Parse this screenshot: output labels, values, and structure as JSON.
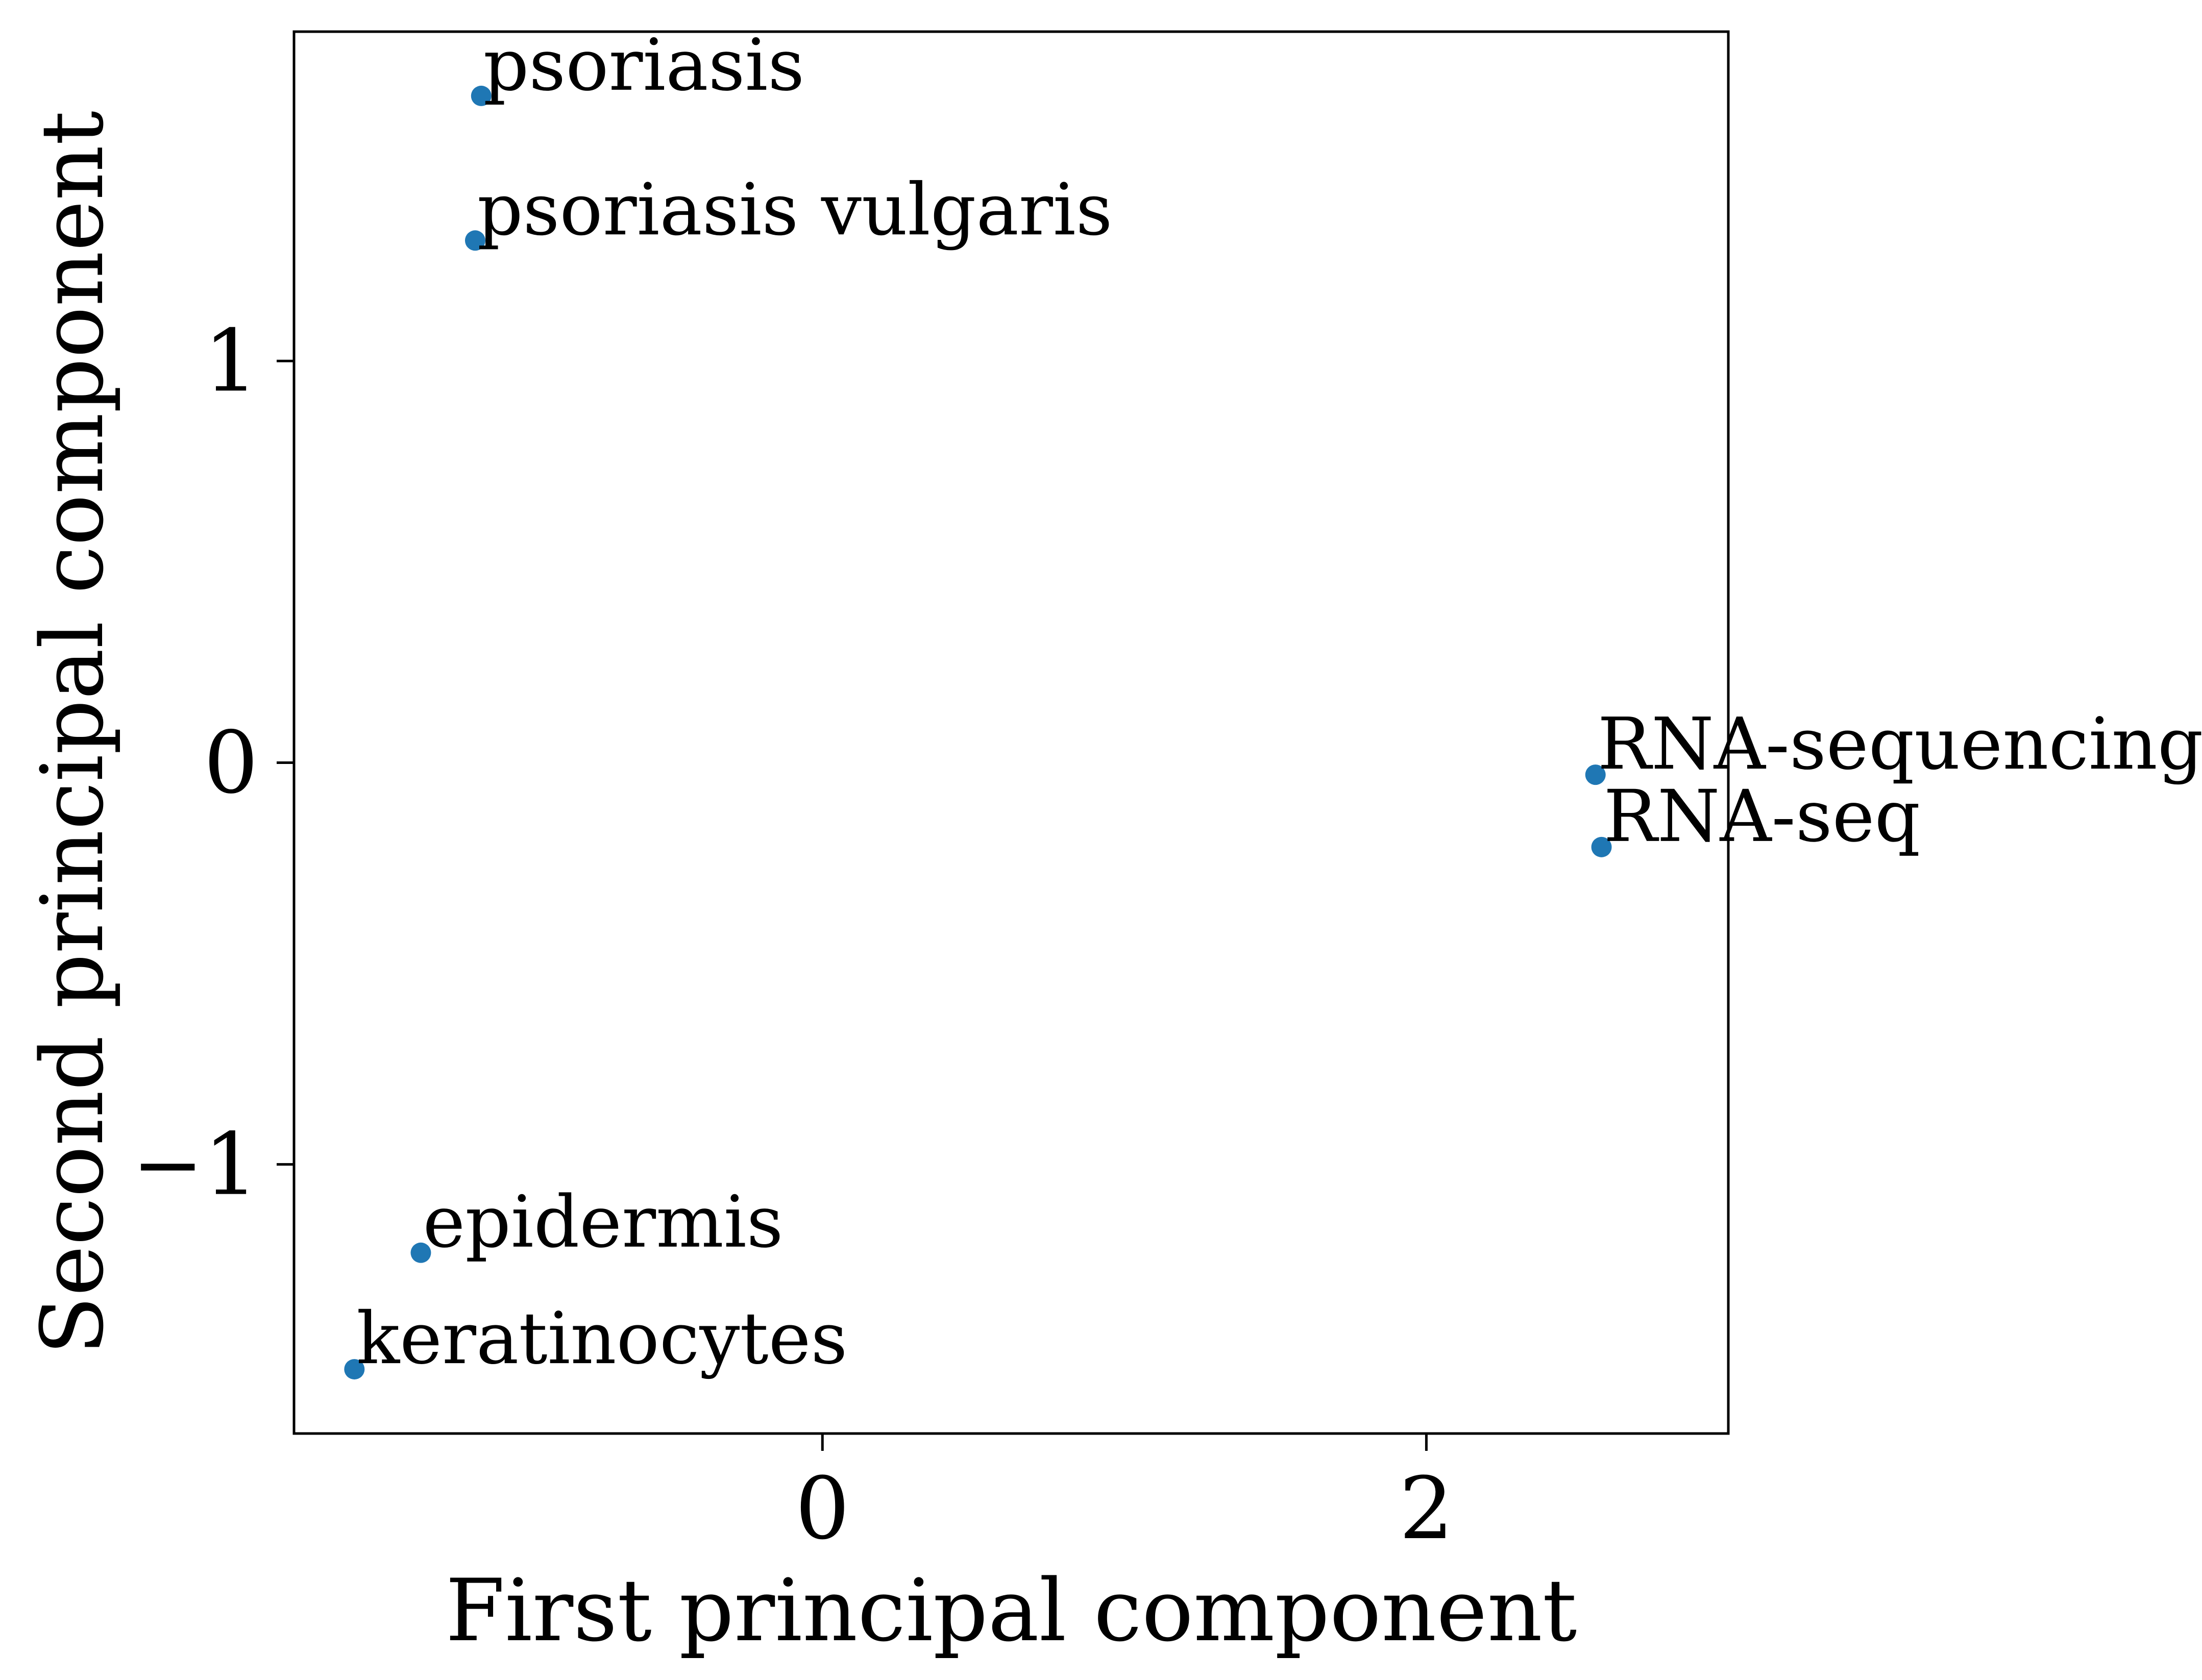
{
  "chart_data": {
    "type": "scatter",
    "title": "",
    "xlabel": "First principal component",
    "ylabel": "Second principal component",
    "xlim": [
      -1.75,
      3.0
    ],
    "ylim": [
      -1.67,
      1.82
    ],
    "xticks": [
      0,
      2
    ],
    "yticks": [
      -1,
      0,
      1
    ],
    "xtick_labels": [
      "0",
      "2"
    ],
    "ytick_labels": [
      "−1",
      "0",
      "1"
    ],
    "grid": false,
    "legend": "none",
    "marker_color": "#1f77b4",
    "points": [
      {
        "label": "psoriasis",
        "x": -1.13,
        "y": 1.66
      },
      {
        "label": "psoriasis vulgaris",
        "x": -1.15,
        "y": 1.3
      },
      {
        "label": "RNA-sequencing",
        "x": 2.56,
        "y": -0.03
      },
      {
        "label": "RNA-seq",
        "x": 2.58,
        "y": -0.21
      },
      {
        "label": "epidermis",
        "x": -1.33,
        "y": -1.22
      },
      {
        "label": "keratinocytes",
        "x": -1.55,
        "y": -1.51
      }
    ]
  }
}
